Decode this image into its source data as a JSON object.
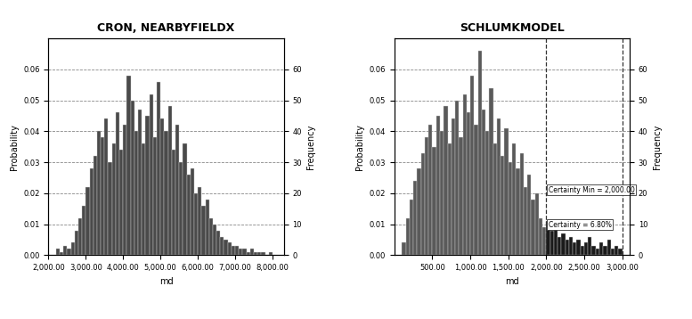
{
  "chart_data": [
    {
      "type": "histogram",
      "title": "CRON, NEARBYFIELDX",
      "x_label": "md",
      "y_label": "Probability",
      "y2_label": "Frequency",
      "color": "#4a4a4a",
      "grid": true,
      "bins": [
        2200,
        2300,
        2400,
        2500,
        2600,
        2700,
        2800,
        2900,
        3000,
        3100,
        3200,
        3300,
        3400,
        3500,
        3600,
        3700,
        3800,
        3900,
        4000,
        4100,
        4200,
        4300,
        4400,
        4500,
        4600,
        4700,
        4800,
        4900,
        5000,
        5100,
        5200,
        5300,
        5400,
        5500,
        5600,
        5700,
        5800,
        5900,
        6000,
        6100,
        6200,
        6300,
        6400,
        6500,
        6600,
        6700,
        6800,
        6900,
        7000,
        7100,
        7200,
        7300,
        7400,
        7500,
        7600,
        7700,
        7800,
        7900,
        8000
      ],
      "values": [
        0.002,
        0.001,
        0.003,
        0.002,
        0.004,
        0.008,
        0.012,
        0.016,
        0.022,
        0.028,
        0.032,
        0.04,
        0.038,
        0.044,
        0.03,
        0.036,
        0.046,
        0.034,
        0.042,
        0.058,
        0.05,
        0.04,
        0.047,
        0.036,
        0.045,
        0.052,
        0.038,
        0.056,
        0.044,
        0.04,
        0.048,
        0.034,
        0.042,
        0.03,
        0.036,
        0.026,
        0.028,
        0.02,
        0.022,
        0.016,
        0.018,
        0.012,
        0.01,
        0.008,
        0.006,
        0.005,
        0.004,
        0.003,
        0.003,
        0.002,
        0.002,
        0.001,
        0.002,
        0.001,
        0.001,
        0.001,
        0.0,
        0.001
      ],
      "xlim": [
        2000,
        8300
      ],
      "xticks": [
        {
          "value": 2000,
          "label": "2,000.00"
        },
        {
          "value": 3000,
          "label": "3,000.00"
        },
        {
          "value": 4000,
          "label": "4,000.00"
        },
        {
          "value": 5000,
          "label": "5,000.00"
        },
        {
          "value": 6000,
          "label": "6,000.00"
        },
        {
          "value": 7000,
          "label": "7,000.00"
        },
        {
          "value": 8000,
          "label": "8,000.00"
        }
      ],
      "ylim": [
        0,
        0.07
      ],
      "yticks": [
        {
          "value": 0,
          "label": "0.00"
        },
        {
          "value": 0.01,
          "label": "0.01"
        },
        {
          "value": 0.02,
          "label": "0.02"
        },
        {
          "value": 0.03,
          "label": "0.03"
        },
        {
          "value": 0.04,
          "label": "0.04"
        },
        {
          "value": 0.05,
          "label": "0.05"
        },
        {
          "value": 0.06,
          "label": "0.06"
        }
      ],
      "y2lim": [
        0,
        70
      ],
      "y2ticks": [
        0,
        10,
        20,
        30,
        40,
        50,
        60
      ]
    },
    {
      "type": "histogram",
      "title": "SCHLUMKMODEL",
      "x_label": "md",
      "y_label": "Probability",
      "y2_label": "Frequency",
      "color": "#5a5a5a",
      "grid": true,
      "bins": [
        100,
        150,
        200,
        250,
        300,
        350,
        400,
        450,
        500,
        550,
        600,
        650,
        700,
        750,
        800,
        850,
        900,
        950,
        1000,
        1050,
        1100,
        1150,
        1200,
        1250,
        1300,
        1350,
        1400,
        1450,
        1500,
        1550,
        1600,
        1650,
        1700,
        1750,
        1800,
        1850,
        1900,
        1950,
        2000,
        2050,
        2100,
        2150,
        2200,
        2250,
        2300,
        2350,
        2400,
        2450,
        2500,
        2550,
        2600,
        2650,
        2700,
        2750,
        2800,
        2850,
        2900,
        2950,
        3000
      ],
      "values": [
        0.004,
        0.012,
        0.018,
        0.024,
        0.028,
        0.033,
        0.038,
        0.042,
        0.035,
        0.045,
        0.04,
        0.048,
        0.036,
        0.044,
        0.05,
        0.038,
        0.052,
        0.046,
        0.058,
        0.042,
        0.066,
        0.047,
        0.04,
        0.054,
        0.036,
        0.044,
        0.032,
        0.041,
        0.03,
        0.036,
        0.028,
        0.033,
        0.022,
        0.026,
        0.018,
        0.02,
        0.012,
        0.009,
        0.011,
        0.008,
        0.01,
        0.006,
        0.007,
        0.005,
        0.006,
        0.004,
        0.005,
        0.003,
        0.004,
        0.006,
        0.003,
        0.002,
        0.004,
        0.003,
        0.005,
        0.002,
        0.003,
        0.002
      ],
      "xlim": [
        0,
        3100
      ],
      "xticks": [
        {
          "value": 500,
          "label": "500.00"
        },
        {
          "value": 1000,
          "label": "1,000.00"
        },
        {
          "value": 1500,
          "label": "1,500.00"
        },
        {
          "value": 2000,
          "label": "2,000.00"
        },
        {
          "value": 2500,
          "label": "2,500.00"
        },
        {
          "value": 3000,
          "label": "3,000.00"
        }
      ],
      "ylim": [
        0,
        0.07
      ],
      "yticks": [
        {
          "value": 0,
          "label": "0.00"
        },
        {
          "value": 0.01,
          "label": "0.01"
        },
        {
          "value": 0.02,
          "label": "0.02"
        },
        {
          "value": 0.03,
          "label": "0.03"
        },
        {
          "value": 0.04,
          "label": "0.04"
        },
        {
          "value": 0.05,
          "label": "0.05"
        },
        {
          "value": 0.06,
          "label": "0.06"
        }
      ],
      "y2lim": [
        0,
        70
      ],
      "y2ticks": [
        0,
        10,
        20,
        30,
        40,
        50,
        60
      ],
      "certainty": {
        "range": [
          2000,
          3000
        ],
        "color": "#1a1a1a",
        "labels": [
          "Certainty Min = 2,000.00",
          "Certainty = 6.80%"
        ]
      }
    }
  ]
}
